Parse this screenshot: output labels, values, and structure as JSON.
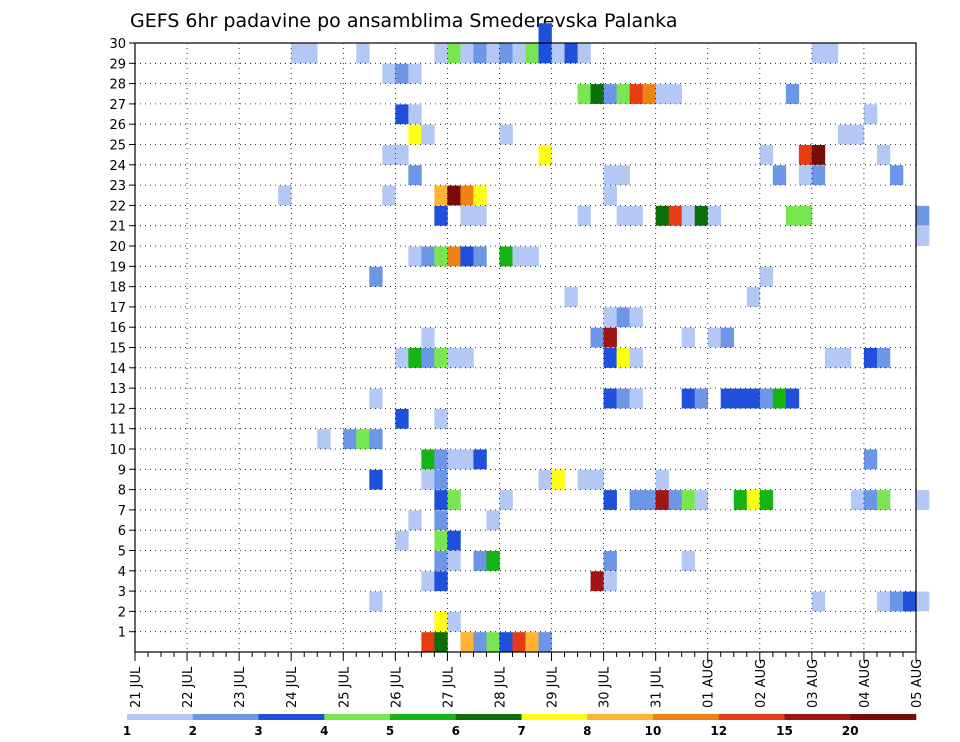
{
  "chart_data": {
    "type": "heatmap",
    "title": "GEFS 6hr padavine po ansamblima Smederevska Palanka",
    "xlabel": "",
    "ylabel": "",
    "x_ticks": [
      "21 JUL",
      "22 JUL",
      "23 JUL",
      "24 JUL",
      "25 JUL",
      "26 JUL",
      "27 JUL",
      "28 JUL",
      "29 JUL",
      "30 JUL",
      "31 JUL",
      "01 AUG",
      "02 AUG",
      "03 AUG",
      "04 AUG",
      "05 AUG"
    ],
    "y_ticks": [
      "1",
      "2",
      "3",
      "4",
      "5",
      "6",
      "7",
      "8",
      "9",
      "10",
      "11",
      "12",
      "13",
      "14",
      "15",
      "16",
      "17",
      "18",
      "19",
      "20",
      "21",
      "22",
      "23",
      "24",
      "25",
      "26",
      "27",
      "28",
      "29",
      "30"
    ],
    "y_range": [
      0,
      30
    ],
    "x_steps_6h": 60,
    "grid": "dotted",
    "colorbar": {
      "labels": [
        "1",
        "2",
        "3",
        "4",
        "5",
        "6",
        "7",
        "8",
        "10",
        "12",
        "15",
        "20"
      ],
      "colors": [
        "#b4c8f5",
        "#6e96e6",
        "#1e50dc",
        "#78e650",
        "#14b414",
        "#0a6e0a",
        "#ffff14",
        "#ffb432",
        "#f08214",
        "#e63c14",
        "#a01414",
        "#780a0a"
      ]
    },
    "cells": [
      [
        12,
        29,
        1
      ],
      [
        13,
        29,
        1
      ],
      [
        17,
        29,
        1
      ],
      [
        23,
        29,
        1
      ],
      [
        24,
        29,
        4
      ],
      [
        25,
        29,
        1
      ],
      [
        26,
        29,
        2
      ],
      [
        27,
        29,
        1
      ],
      [
        28,
        29,
        2
      ],
      [
        29,
        29,
        1
      ],
      [
        30,
        29,
        4
      ],
      [
        31,
        29,
        3
      ],
      [
        32,
        29,
        1
      ],
      [
        33,
        29,
        3
      ],
      [
        34,
        29,
        1
      ],
      [
        52,
        29,
        1
      ],
      [
        53,
        29,
        1
      ],
      [
        31,
        30,
        3
      ],
      [
        19,
        28,
        1
      ],
      [
        20,
        28,
        2
      ],
      [
        21,
        28,
        1
      ],
      [
        34,
        27,
        4
      ],
      [
        35,
        27,
        6
      ],
      [
        36,
        27,
        2
      ],
      [
        37,
        27,
        4
      ],
      [
        38,
        27,
        10
      ],
      [
        39,
        27,
        9
      ],
      [
        40,
        27,
        1
      ],
      [
        41,
        27,
        1
      ],
      [
        50,
        27,
        2
      ],
      [
        20,
        26,
        3
      ],
      [
        21,
        26,
        1
      ],
      [
        56,
        26,
        1
      ],
      [
        21,
        25,
        7
      ],
      [
        22,
        25,
        1
      ],
      [
        28,
        25,
        1
      ],
      [
        54,
        25,
        1
      ],
      [
        55,
        25,
        1
      ],
      [
        19,
        24,
        1
      ],
      [
        20,
        24,
        1
      ],
      [
        31,
        24,
        7
      ],
      [
        48,
        24,
        1
      ],
      [
        51,
        24,
        10
      ],
      [
        52,
        24,
        12
      ],
      [
        57,
        24,
        1
      ],
      [
        21,
        23,
        2
      ],
      [
        36,
        23,
        1
      ],
      [
        37,
        23,
        1
      ],
      [
        49,
        23,
        2
      ],
      [
        51,
        23,
        1
      ],
      [
        52,
        23,
        2
      ],
      [
        58,
        23,
        2
      ],
      [
        11,
        22,
        1
      ],
      [
        19,
        22,
        1
      ],
      [
        23,
        22,
        8
      ],
      [
        24,
        22,
        12
      ],
      [
        25,
        22,
        9
      ],
      [
        26,
        22,
        7
      ],
      [
        36,
        22,
        1
      ],
      [
        23,
        21,
        3
      ],
      [
        25,
        21,
        1
      ],
      [
        26,
        21,
        1
      ],
      [
        34,
        21,
        1
      ],
      [
        37,
        21,
        1
      ],
      [
        38,
        21,
        1
      ],
      [
        40,
        21,
        6
      ],
      [
        41,
        21,
        10
      ],
      [
        42,
        21,
        1
      ],
      [
        43,
        21,
        6
      ],
      [
        44,
        21,
        1
      ],
      [
        50,
        21,
        4
      ],
      [
        51,
        21,
        4
      ],
      [
        60,
        21,
        2
      ],
      [
        60,
        20,
        1
      ],
      [
        21,
        19,
        1
      ],
      [
        22,
        19,
        2
      ],
      [
        23,
        19,
        4
      ],
      [
        24,
        19,
        9
      ],
      [
        25,
        19,
        3
      ],
      [
        26,
        19,
        2
      ],
      [
        28,
        19,
        5
      ],
      [
        29,
        19,
        1
      ],
      [
        30,
        19,
        1
      ],
      [
        18,
        18,
        2
      ],
      [
        48,
        18,
        1
      ],
      [
        33,
        17,
        1
      ],
      [
        47,
        17,
        1
      ],
      [
        36,
        16,
        1
      ],
      [
        37,
        16,
        2
      ],
      [
        38,
        16,
        1
      ],
      [
        22,
        15,
        1
      ],
      [
        35,
        15,
        2
      ],
      [
        36,
        15,
        11
      ],
      [
        42,
        15,
        1
      ],
      [
        44,
        15,
        1
      ],
      [
        45,
        15,
        2
      ],
      [
        20,
        14,
        1
      ],
      [
        21,
        14,
        5
      ],
      [
        22,
        14,
        2
      ],
      [
        23,
        14,
        4
      ],
      [
        24,
        14,
        1
      ],
      [
        25,
        14,
        1
      ],
      [
        36,
        14,
        3
      ],
      [
        37,
        14,
        7
      ],
      [
        38,
        14,
        1
      ],
      [
        53,
        14,
        1
      ],
      [
        54,
        14,
        1
      ],
      [
        56,
        14,
        3
      ],
      [
        57,
        14,
        2
      ],
      [
        18,
        12,
        1
      ],
      [
        36,
        12,
        3
      ],
      [
        37,
        12,
        2
      ],
      [
        38,
        12,
        1
      ],
      [
        42,
        12,
        3
      ],
      [
        43,
        12,
        2
      ],
      [
        45,
        12,
        3
      ],
      [
        46,
        12,
        3
      ],
      [
        47,
        12,
        3
      ],
      [
        48,
        12,
        2
      ],
      [
        49,
        12,
        5
      ],
      [
        50,
        12,
        3
      ],
      [
        20,
        11,
        3
      ],
      [
        23,
        11,
        1
      ],
      [
        14,
        10,
        1
      ],
      [
        16,
        10,
        2
      ],
      [
        17,
        10,
        4
      ],
      [
        18,
        10,
        2
      ],
      [
        22,
        9,
        5
      ],
      [
        23,
        9,
        2
      ],
      [
        24,
        9,
        1
      ],
      [
        25,
        9,
        1
      ],
      [
        26,
        9,
        3
      ],
      [
        56,
        9,
        2
      ],
      [
        18,
        8,
        3
      ],
      [
        22,
        8,
        1
      ],
      [
        23,
        8,
        2
      ],
      [
        31,
        8,
        1
      ],
      [
        32,
        8,
        7
      ],
      [
        34,
        8,
        1
      ],
      [
        35,
        8,
        1
      ],
      [
        40,
        8,
        1
      ],
      [
        23,
        7,
        3
      ],
      [
        24,
        7,
        4
      ],
      [
        28,
        7,
        1
      ],
      [
        36,
        7,
        3
      ],
      [
        38,
        7,
        2
      ],
      [
        39,
        7,
        2
      ],
      [
        40,
        7,
        11
      ],
      [
        41,
        7,
        2
      ],
      [
        42,
        7,
        4
      ],
      [
        43,
        7,
        1
      ],
      [
        46,
        7,
        5
      ],
      [
        47,
        7,
        7
      ],
      [
        48,
        7,
        5
      ],
      [
        55,
        7,
        1
      ],
      [
        56,
        7,
        2
      ],
      [
        57,
        7,
        4
      ],
      [
        60,
        7,
        1
      ],
      [
        21,
        6,
        1
      ],
      [
        23,
        6,
        2
      ],
      [
        27,
        6,
        1
      ],
      [
        20,
        5,
        1
      ],
      [
        23,
        5,
        4
      ],
      [
        24,
        5,
        3
      ],
      [
        23,
        4,
        2
      ],
      [
        24,
        4,
        1
      ],
      [
        26,
        4,
        2
      ],
      [
        27,
        4,
        5
      ],
      [
        36,
        4,
        2
      ],
      [
        42,
        4,
        1
      ],
      [
        22,
        3,
        1
      ],
      [
        23,
        3,
        3
      ],
      [
        35,
        3,
        11
      ],
      [
        36,
        3,
        1
      ],
      [
        18,
        2,
        1
      ],
      [
        52,
        2,
        1
      ],
      [
        57,
        2,
        1
      ],
      [
        58,
        2,
        2
      ],
      [
        59,
        2,
        3
      ],
      [
        60,
        2,
        1
      ],
      [
        23,
        1,
        7
      ],
      [
        24,
        1,
        1
      ],
      [
        22,
        0,
        10
      ],
      [
        23,
        0,
        6
      ],
      [
        25,
        0,
        8
      ],
      [
        26,
        0,
        2
      ],
      [
        27,
        0,
        4
      ],
      [
        28,
        0,
        3
      ],
      [
        29,
        0,
        10
      ],
      [
        30,
        0,
        8
      ],
      [
        31,
        0,
        2
      ]
    ]
  }
}
